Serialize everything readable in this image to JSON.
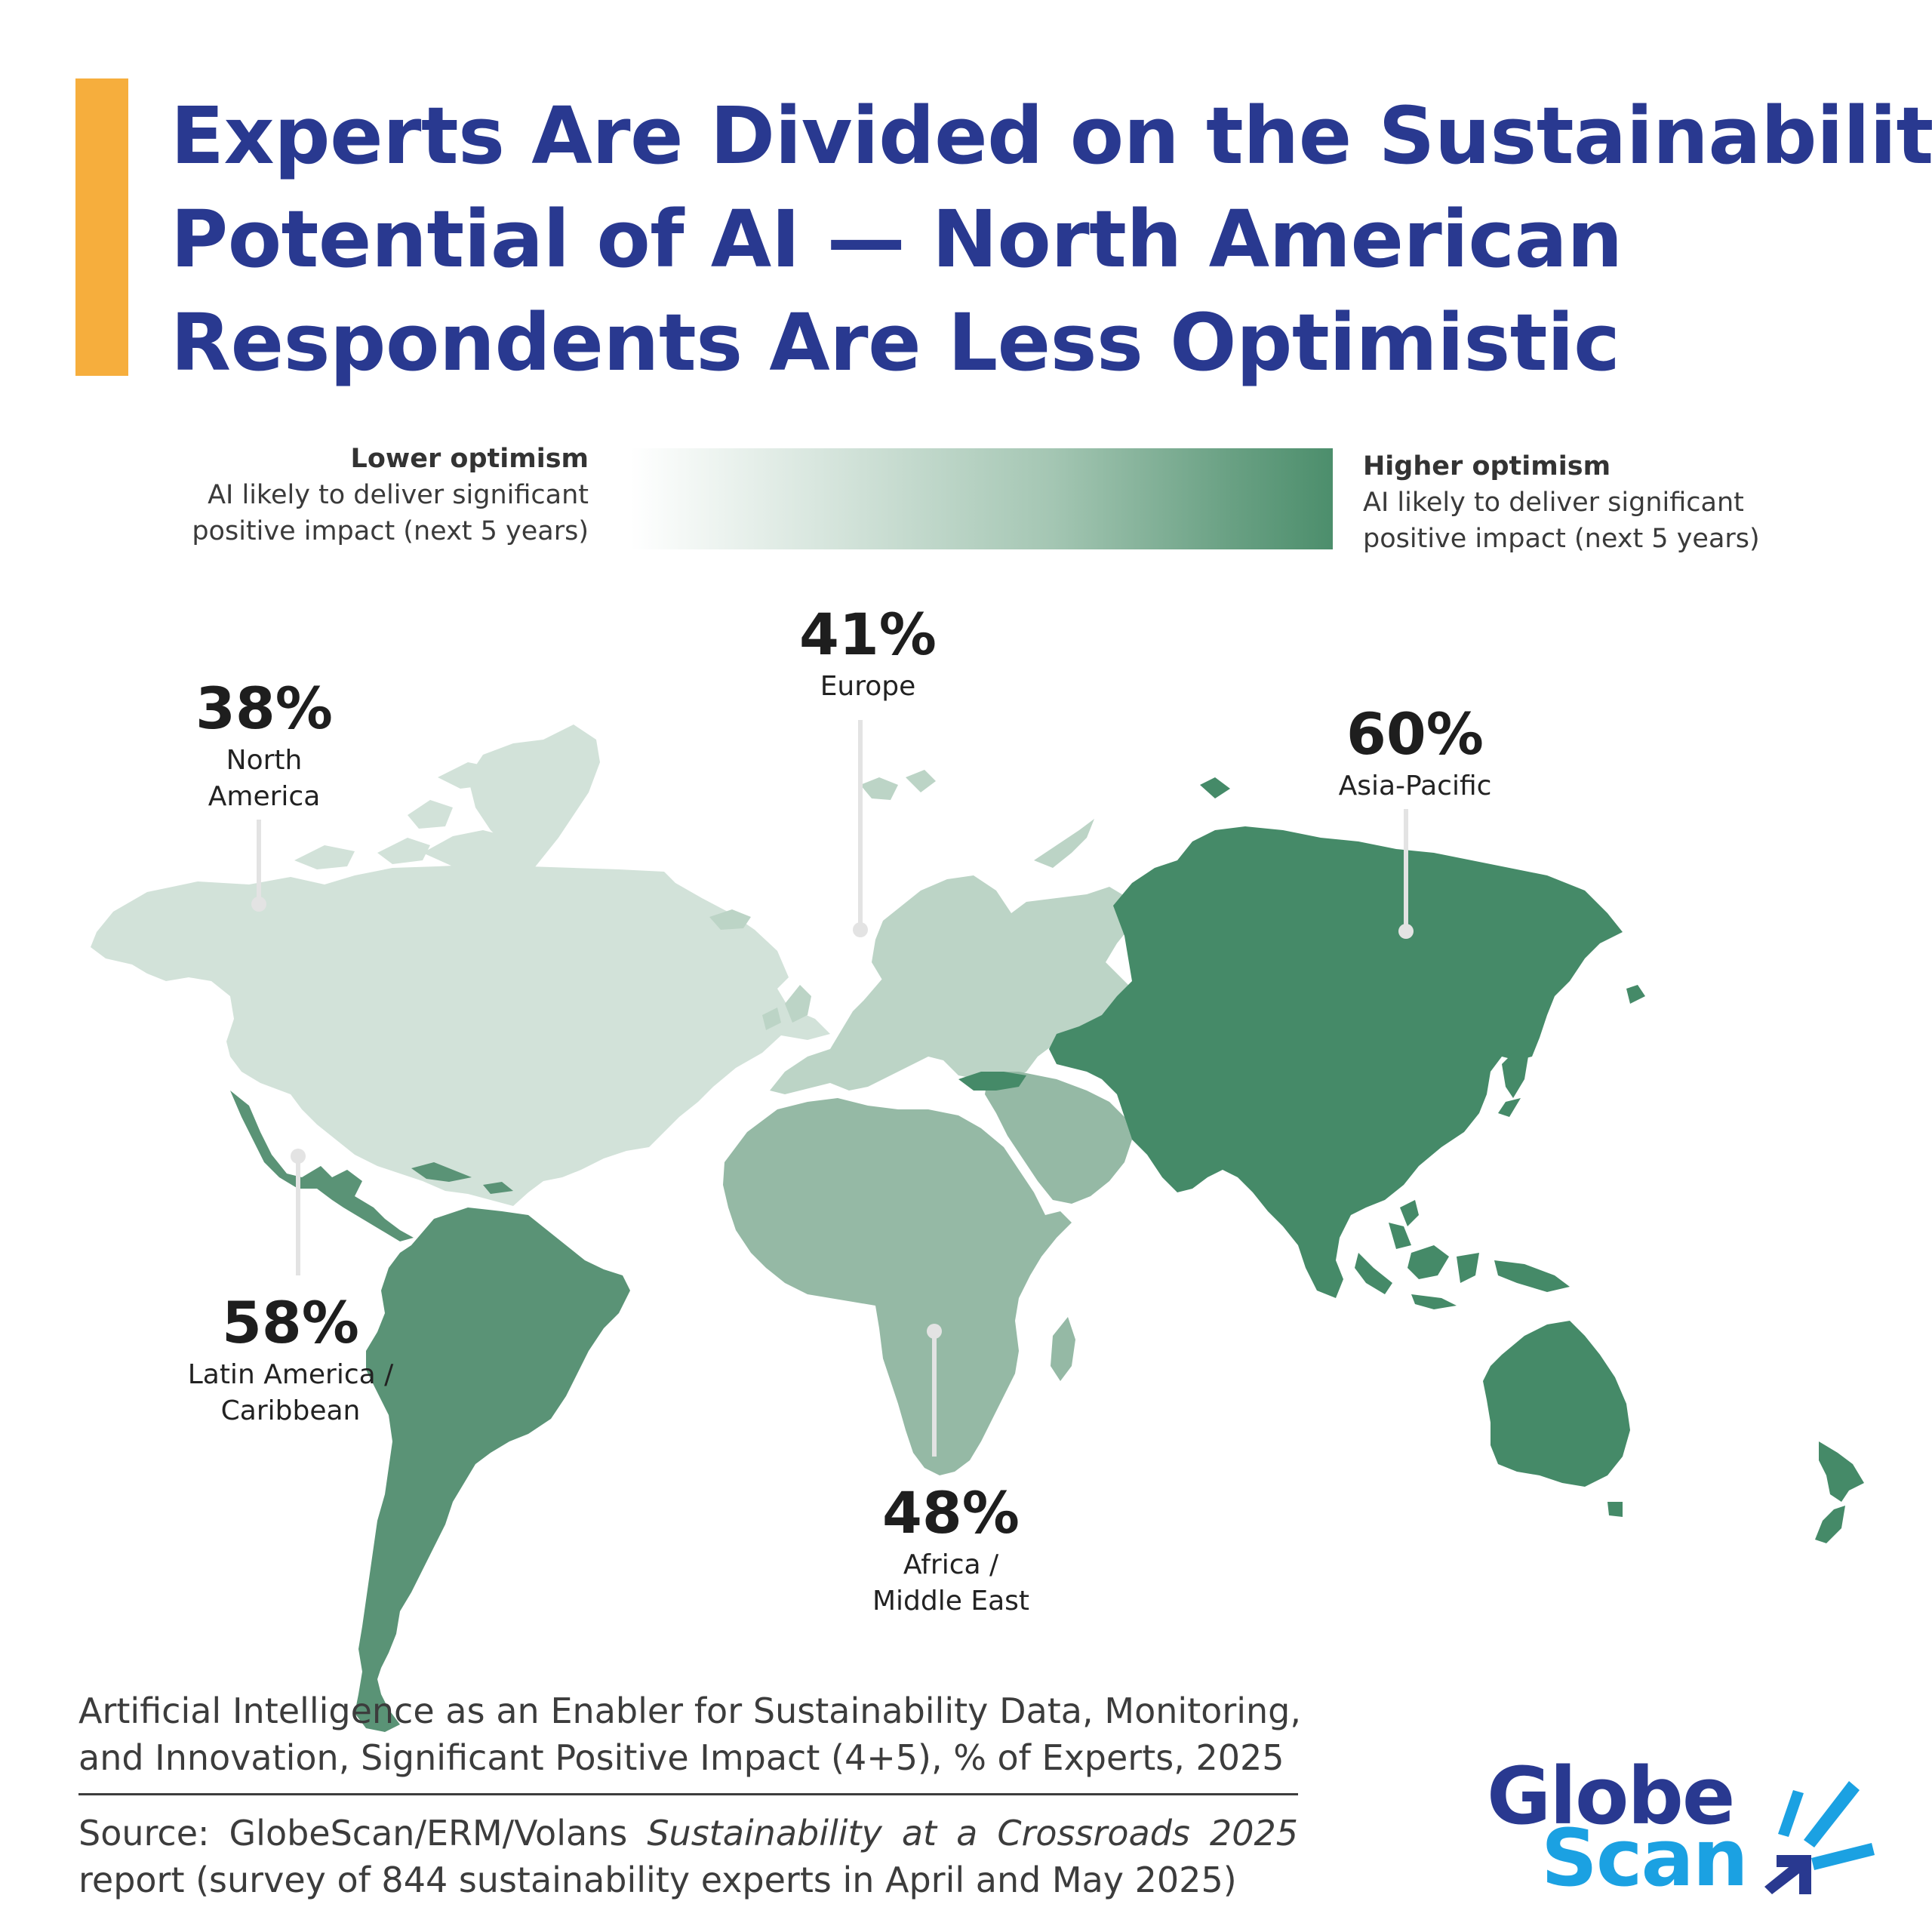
{
  "title": {
    "lines": [
      "Experts Are Divided on the Sustainability",
      "Potential of AI — North American",
      "Respondents Are Less Optimistic"
    ]
  },
  "legend": {
    "lower_label": "Lower optimism",
    "lower_desc_1": "AI likely to deliver significant",
    "lower_desc_2": "positive impact (next 5 years)",
    "higher_label": "Higher optimism",
    "higher_desc_1": "AI likely to deliver significant",
    "higher_desc_2": "positive impact (next 5 years)",
    "scale_colors": [
      "#ffffff",
      "#4c8e6c"
    ]
  },
  "regions": [
    {
      "id": "north-america",
      "value": "38%",
      "label_1": "North",
      "label_2": "America",
      "color": "#d2e2d9"
    },
    {
      "id": "europe",
      "value": "41%",
      "label_1": "Europe",
      "label_2": "",
      "color": "#bcd4c6"
    },
    {
      "id": "asia-pacific",
      "value": "60%",
      "label_1": "Asia-Pacific",
      "label_2": "",
      "color": "#458a68"
    },
    {
      "id": "latin-america",
      "value": "58%",
      "label_1": "Latin America /",
      "label_2": "Caribbean",
      "color": "#5a9376"
    },
    {
      "id": "africa-middle-east",
      "value": "48%",
      "label_1": "Africa /",
      "label_2": "Middle East",
      "color": "#95b9a5"
    }
  ],
  "caption": {
    "text": "Artificial Intelligence as an Enabler for Sustainability Data, Monitoring, and Innovation, Significant Positive Impact (4+5), % of Experts, 2025"
  },
  "source": {
    "prefix": "Source: GlobeScan/ERM/Volans ",
    "report": "Sustainability at a Crossroads 2025",
    "suffix": " report (survey of 844 sustainability experts in April and May 2025)"
  },
  "logo": {
    "line_1": "Globe",
    "line_2": "Scan",
    "colors": {
      "globe": "#293990",
      "scan": "#1ba1e2"
    }
  }
}
